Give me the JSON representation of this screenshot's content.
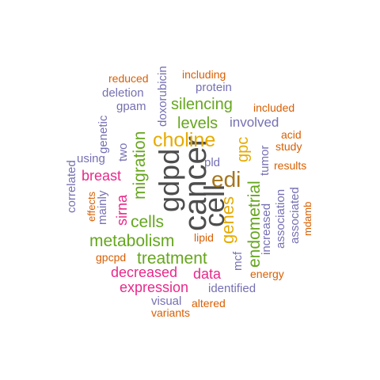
{
  "cloud": {
    "palette": {
      "dark-gray": "#4d4d4d",
      "brown": "#a6761d",
      "gold": "#e6ab02",
      "green": "#66a61e",
      "magenta": "#e7298a",
      "purple": "#7570b3",
      "orange": "#d95f02"
    },
    "words": [
      {
        "id": "gdpd",
        "text": "gdpd",
        "color": "dark-gray"
      },
      {
        "id": "cancer",
        "text": "cancer",
        "color": "dark-gray"
      },
      {
        "id": "cell",
        "text": "cell",
        "color": "dark-gray"
      },
      {
        "id": "edi",
        "text": "edi",
        "color": "brown"
      },
      {
        "id": "choline",
        "text": "choline",
        "color": "gold"
      },
      {
        "id": "genes",
        "text": "genes",
        "color": "gold"
      },
      {
        "id": "gpc",
        "text": "gpc",
        "color": "gold"
      },
      {
        "id": "silencing",
        "text": "silencing",
        "color": "green"
      },
      {
        "id": "levels",
        "text": "levels",
        "color": "green"
      },
      {
        "id": "migration",
        "text": "migration",
        "color": "green"
      },
      {
        "id": "cells",
        "text": "cells",
        "color": "green"
      },
      {
        "id": "metabolism",
        "text": "metabolism",
        "color": "green"
      },
      {
        "id": "treatment",
        "text": "treatment",
        "color": "green"
      },
      {
        "id": "endometrial",
        "text": "endometrial",
        "color": "green"
      },
      {
        "id": "breast",
        "text": "breast",
        "color": "magenta"
      },
      {
        "id": "sirna",
        "text": "sirna",
        "color": "magenta"
      },
      {
        "id": "decreased",
        "text": "decreased",
        "color": "magenta"
      },
      {
        "id": "data",
        "text": "data",
        "color": "magenta"
      },
      {
        "id": "expression",
        "text": "expression",
        "color": "magenta"
      },
      {
        "id": "involved",
        "text": "involved",
        "color": "purple"
      },
      {
        "id": "protein",
        "text": "protein",
        "color": "purple"
      },
      {
        "id": "deletion",
        "text": "deletion",
        "color": "purple"
      },
      {
        "id": "gpam",
        "text": "gpam",
        "color": "purple"
      },
      {
        "id": "doxorubicin",
        "text": "doxorubicin",
        "color": "purple"
      },
      {
        "id": "genetic",
        "text": "genetic",
        "color": "purple"
      },
      {
        "id": "two",
        "text": "two",
        "color": "purple"
      },
      {
        "id": "using",
        "text": "using",
        "color": "purple"
      },
      {
        "id": "correlated",
        "text": "correlated",
        "color": "purple"
      },
      {
        "id": "mainly",
        "text": "mainly",
        "color": "purple"
      },
      {
        "id": "pld",
        "text": "pld",
        "color": "purple"
      },
      {
        "id": "mcf",
        "text": "mcf",
        "color": "purple"
      },
      {
        "id": "increased",
        "text": "increased",
        "color": "purple"
      },
      {
        "id": "tumor",
        "text": "tumor",
        "color": "purple"
      },
      {
        "id": "association",
        "text": "association",
        "color": "purple"
      },
      {
        "id": "associated",
        "text": "associated",
        "color": "purple"
      },
      {
        "id": "identified",
        "text": "identified",
        "color": "purple"
      },
      {
        "id": "visual",
        "text": "visual",
        "color": "purple"
      },
      {
        "id": "reduced",
        "text": "reduced",
        "color": "orange"
      },
      {
        "id": "including",
        "text": "including",
        "color": "orange"
      },
      {
        "id": "included",
        "text": "included",
        "color": "orange"
      },
      {
        "id": "acid",
        "text": "acid",
        "color": "orange"
      },
      {
        "id": "study",
        "text": "study",
        "color": "orange"
      },
      {
        "id": "results",
        "text": "results",
        "color": "orange"
      },
      {
        "id": "effects",
        "text": "effects",
        "color": "orange"
      },
      {
        "id": "lipid",
        "text": "lipid",
        "color": "orange"
      },
      {
        "id": "gpcpd",
        "text": "gpcpd",
        "color": "orange"
      },
      {
        "id": "mdamb",
        "text": "mdamb",
        "color": "orange"
      },
      {
        "id": "energy",
        "text": "energy",
        "color": "orange"
      },
      {
        "id": "altered",
        "text": "altered",
        "color": "orange"
      },
      {
        "id": "variants",
        "text": "variants",
        "color": "orange"
      }
    ]
  }
}
